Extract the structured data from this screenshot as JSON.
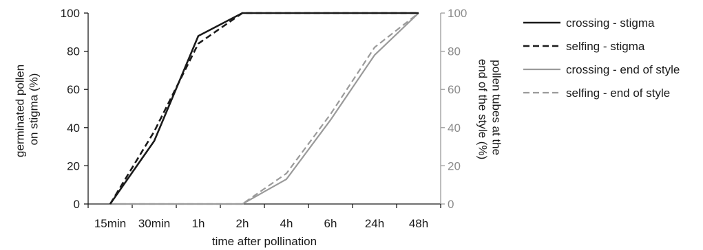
{
  "chart_data": {
    "type": "line",
    "categories": [
      "15min",
      "30min",
      "1h",
      "2h",
      "4h",
      "6h",
      "24h",
      "48h"
    ],
    "xlabel": "time after pollination",
    "ylabel_left": "germinated pollen on stigma (%)",
    "ylabel_left_lines": [
      "germinated pollen",
      "on stigma (%)"
    ],
    "ylabel_right": "pollen tubes at the end of the style (%)",
    "ylabel_right_lines": [
      "pollen tubes at the",
      "end of the style (%)"
    ],
    "ylim_left": [
      0,
      100
    ],
    "ylim_right": [
      0,
      100
    ],
    "yticks": [
      0,
      20,
      40,
      60,
      80,
      100
    ],
    "grid": false,
    "legend_position": "right",
    "series": [
      {
        "name": "crossing - stigma",
        "axis": "left",
        "color": "#1a1a1a",
        "dash": "solid",
        "values": [
          0,
          33,
          88,
          100,
          100,
          100,
          100,
          100
        ]
      },
      {
        "name": "selfing - stigma",
        "axis": "left",
        "color": "#1a1a1a",
        "dash": "dashed",
        "values": [
          0,
          38,
          84,
          100,
          100,
          100,
          100,
          100
        ]
      },
      {
        "name": "crossing - end of style",
        "axis": "right",
        "color": "#9a9a9a",
        "dash": "solid",
        "values": [
          0,
          0,
          0,
          0,
          13,
          44,
          78,
          100
        ]
      },
      {
        "name": "selfing - end of style",
        "axis": "right",
        "color": "#9a9a9a",
        "dash": "dashed",
        "values": [
          0,
          0,
          0,
          0,
          16,
          47,
          82,
          100
        ]
      }
    ]
  }
}
